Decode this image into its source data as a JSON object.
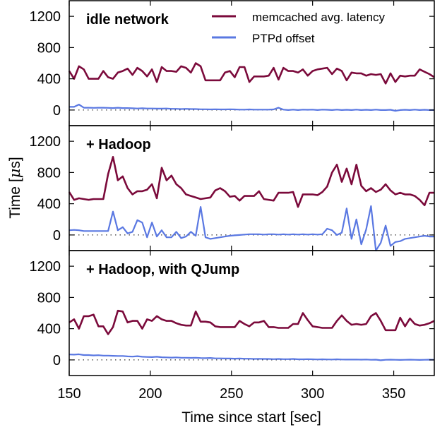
{
  "chart_data": {
    "type": "line",
    "xlabel": "Time since start [sec]",
    "ylabel_prefix": "Time [",
    "ylabel_unit": "μ",
    "ylabel_suffix": "s]",
    "xlim": [
      150,
      375
    ],
    "ylim": [
      -200,
      1400
    ],
    "xticks": [
      "150",
      "200",
      "250",
      "300",
      "350"
    ],
    "yticks": [
      "0",
      "400",
      "800",
      "1200"
    ],
    "legend": {
      "position": "top-right",
      "entries": [
        "memcached avg. latency",
        "PTPd offset"
      ]
    },
    "colors": {
      "memcached": "#7b0a3b",
      "ptpd": "#5a78e2"
    },
    "x_start": 150,
    "x_step": 3,
    "panels": [
      {
        "title": "idle network",
        "series": [
          {
            "name": "memcached avg. latency",
            "values": [
              500,
              400,
              560,
              520,
              400,
              400,
              400,
              500,
              420,
              400,
              480,
              500,
              530,
              450,
              540,
              500,
              430,
              520,
              360,
              550,
              500,
              500,
              490,
              560,
              540,
              480,
              600,
              560,
              380,
              380,
              380,
              380,
              480,
              500,
              420,
              550,
              550,
              360,
              430,
              430,
              430,
              440,
              540,
              390,
              540,
              500,
              500,
              480,
              520,
              440,
              500,
              520,
              530,
              540,
              460,
              530,
              500,
              380,
              480,
              470,
              470,
              440,
              460,
              450,
              460,
              340,
              470,
              360,
              440,
              430,
              440,
              440,
              520,
              490,
              460,
              420
            ]
          },
          {
            "name": "PTPd offset",
            "values": [
              40,
              40,
              70,
              30,
              30,
              28,
              30,
              30,
              28,
              25,
              30,
              25,
              25,
              22,
              20,
              22,
              20,
              20,
              18,
              18,
              20,
              15,
              15,
              12,
              15,
              12,
              12,
              10,
              10,
              8,
              10,
              8,
              8,
              10,
              8,
              5,
              5,
              8,
              5,
              5,
              5,
              5,
              8,
              30,
              5,
              0,
              5,
              0,
              5,
              3,
              5,
              0,
              5,
              3,
              0,
              5,
              0,
              3,
              0,
              5,
              0,
              3,
              0,
              5,
              0,
              0,
              3,
              -10,
              0,
              3,
              0,
              5,
              0,
              3,
              0,
              0
            ]
          }
        ]
      },
      {
        "title": "+ Hadoop",
        "series": [
          {
            "name": "memcached avg. latency",
            "values": [
              550,
              450,
              470,
              460,
              450,
              460,
              460,
              460,
              780,
              1000,
              700,
              750,
              600,
              520,
              560,
              560,
              580,
              650,
              470,
              860,
              700,
              760,
              650,
              600,
              520,
              500,
              480,
              460,
              470,
              480,
              570,
              600,
              560,
              490,
              500,
              440,
              500,
              500,
              500,
              560,
              460,
              450,
              440,
              540,
              540,
              540,
              550,
              360,
              520,
              520,
              520,
              510,
              550,
              620,
              800,
              900,
              680,
              850,
              650,
              900,
              630,
              560,
              600,
              550,
              580,
              650,
              570,
              520,
              540,
              520,
              520,
              500,
              450,
              380,
              540,
              540
            ]
          },
          {
            "name": "PTPd offset",
            "values": [
              60,
              65,
              60,
              50,
              50,
              50,
              50,
              50,
              50,
              300,
              60,
              100,
              20,
              40,
              190,
              160,
              -30,
              160,
              -20,
              60,
              -30,
              -30,
              40,
              -40,
              -20,
              40,
              -10,
              360,
              -30,
              -50,
              -40,
              -30,
              -20,
              -10,
              -5,
              0,
              5,
              10,
              10,
              10,
              5,
              10,
              10,
              5,
              10,
              5,
              10,
              5,
              10,
              5,
              10,
              5,
              10,
              80,
              60,
              0,
              30,
              340,
              -50,
              200,
              -120,
              70,
              370,
              -200,
              -100,
              120,
              -140,
              -90,
              -80,
              -50,
              -40,
              -30,
              -20,
              -10,
              -20,
              -20
            ]
          }
        ]
      },
      {
        "title": "+ Hadoop, with QJump",
        "series": [
          {
            "name": "memcached avg. latency",
            "values": [
              480,
              520,
              400,
              560,
              560,
              580,
              430,
              430,
              330,
              420,
              630,
              620,
              480,
              500,
              500,
              400,
              520,
              500,
              560,
              520,
              500,
              500,
              470,
              450,
              440,
              440,
              620,
              490,
              490,
              480,
              430,
              420,
              420,
              420,
              420,
              500,
              460,
              430,
              480,
              480,
              500,
              420,
              420,
              410,
              410,
              410,
              460,
              460,
              600,
              510,
              430,
              420,
              410,
              410,
              410,
              500,
              570,
              500,
              450,
              460,
              450,
              460,
              560,
              600,
              500,
              380,
              380,
              380,
              540,
              430,
              530,
              460,
              440,
              450,
              470,
              500
            ]
          },
          {
            "name": "PTPd offset",
            "values": [
              70,
              68,
              72,
              62,
              62,
              58,
              60,
              55,
              55,
              52,
              50,
              50,
              45,
              42,
              48,
              40,
              38,
              36,
              40,
              34,
              32,
              30,
              32,
              28,
              28,
              26,
              28,
              24,
              22,
              25,
              20,
              20,
              18,
              18,
              16,
              18,
              15,
              15,
              12,
              14,
              12,
              12,
              10,
              12,
              10,
              10,
              12,
              8,
              8,
              10,
              8,
              6,
              8,
              6,
              5,
              8,
              5,
              4,
              5,
              4,
              3,
              5,
              2,
              3,
              -5,
              2,
              3,
              2,
              0,
              2,
              3,
              2,
              0,
              2,
              3,
              2
            ]
          }
        ]
      }
    ]
  }
}
